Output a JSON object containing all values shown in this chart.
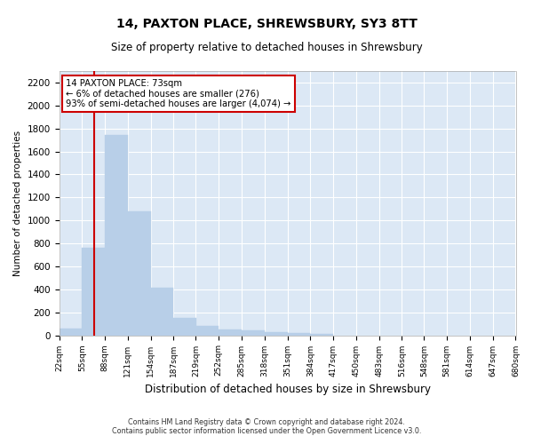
{
  "title1": "14, PAXTON PLACE, SHREWSBURY, SY3 8TT",
  "title2": "Size of property relative to detached houses in Shrewsbury",
  "xlabel": "Distribution of detached houses by size in Shrewsbury",
  "ylabel": "Number of detached properties",
  "annotation_title": "14 PAXTON PLACE: 73sqm",
  "annotation_line1": "← 6% of detached houses are smaller (276)",
  "annotation_line2": "93% of semi-detached houses are larger (4,074) →",
  "vline_x": 73,
  "bin_edges": [
    22,
    55,
    88,
    121,
    154,
    187,
    219,
    252,
    285,
    318,
    351,
    384,
    417,
    450,
    483,
    516,
    548,
    581,
    614,
    647,
    680
  ],
  "bar_heights": [
    55,
    760,
    1740,
    1075,
    415,
    155,
    85,
    48,
    40,
    30,
    20,
    15,
    0,
    0,
    0,
    0,
    0,
    0,
    0,
    0
  ],
  "bar_color": "#b8cfe8",
  "bar_edgecolor": "#b8cfe8",
  "vline_color": "#cc0000",
  "annotation_box_edgecolor": "#cc0000",
  "annotation_box_facecolor": "#ffffff",
  "background_color": "#ffffff",
  "axes_facecolor": "#dce8f5",
  "grid_color": "#ffffff",
  "ylim": [
    0,
    2300
  ],
  "yticks": [
    0,
    200,
    400,
    600,
    800,
    1000,
    1200,
    1400,
    1600,
    1800,
    2000,
    2200
  ],
  "footer_line1": "Contains HM Land Registry data © Crown copyright and database right 2024.",
  "footer_line2": "Contains public sector information licensed under the Open Government Licence v3.0."
}
